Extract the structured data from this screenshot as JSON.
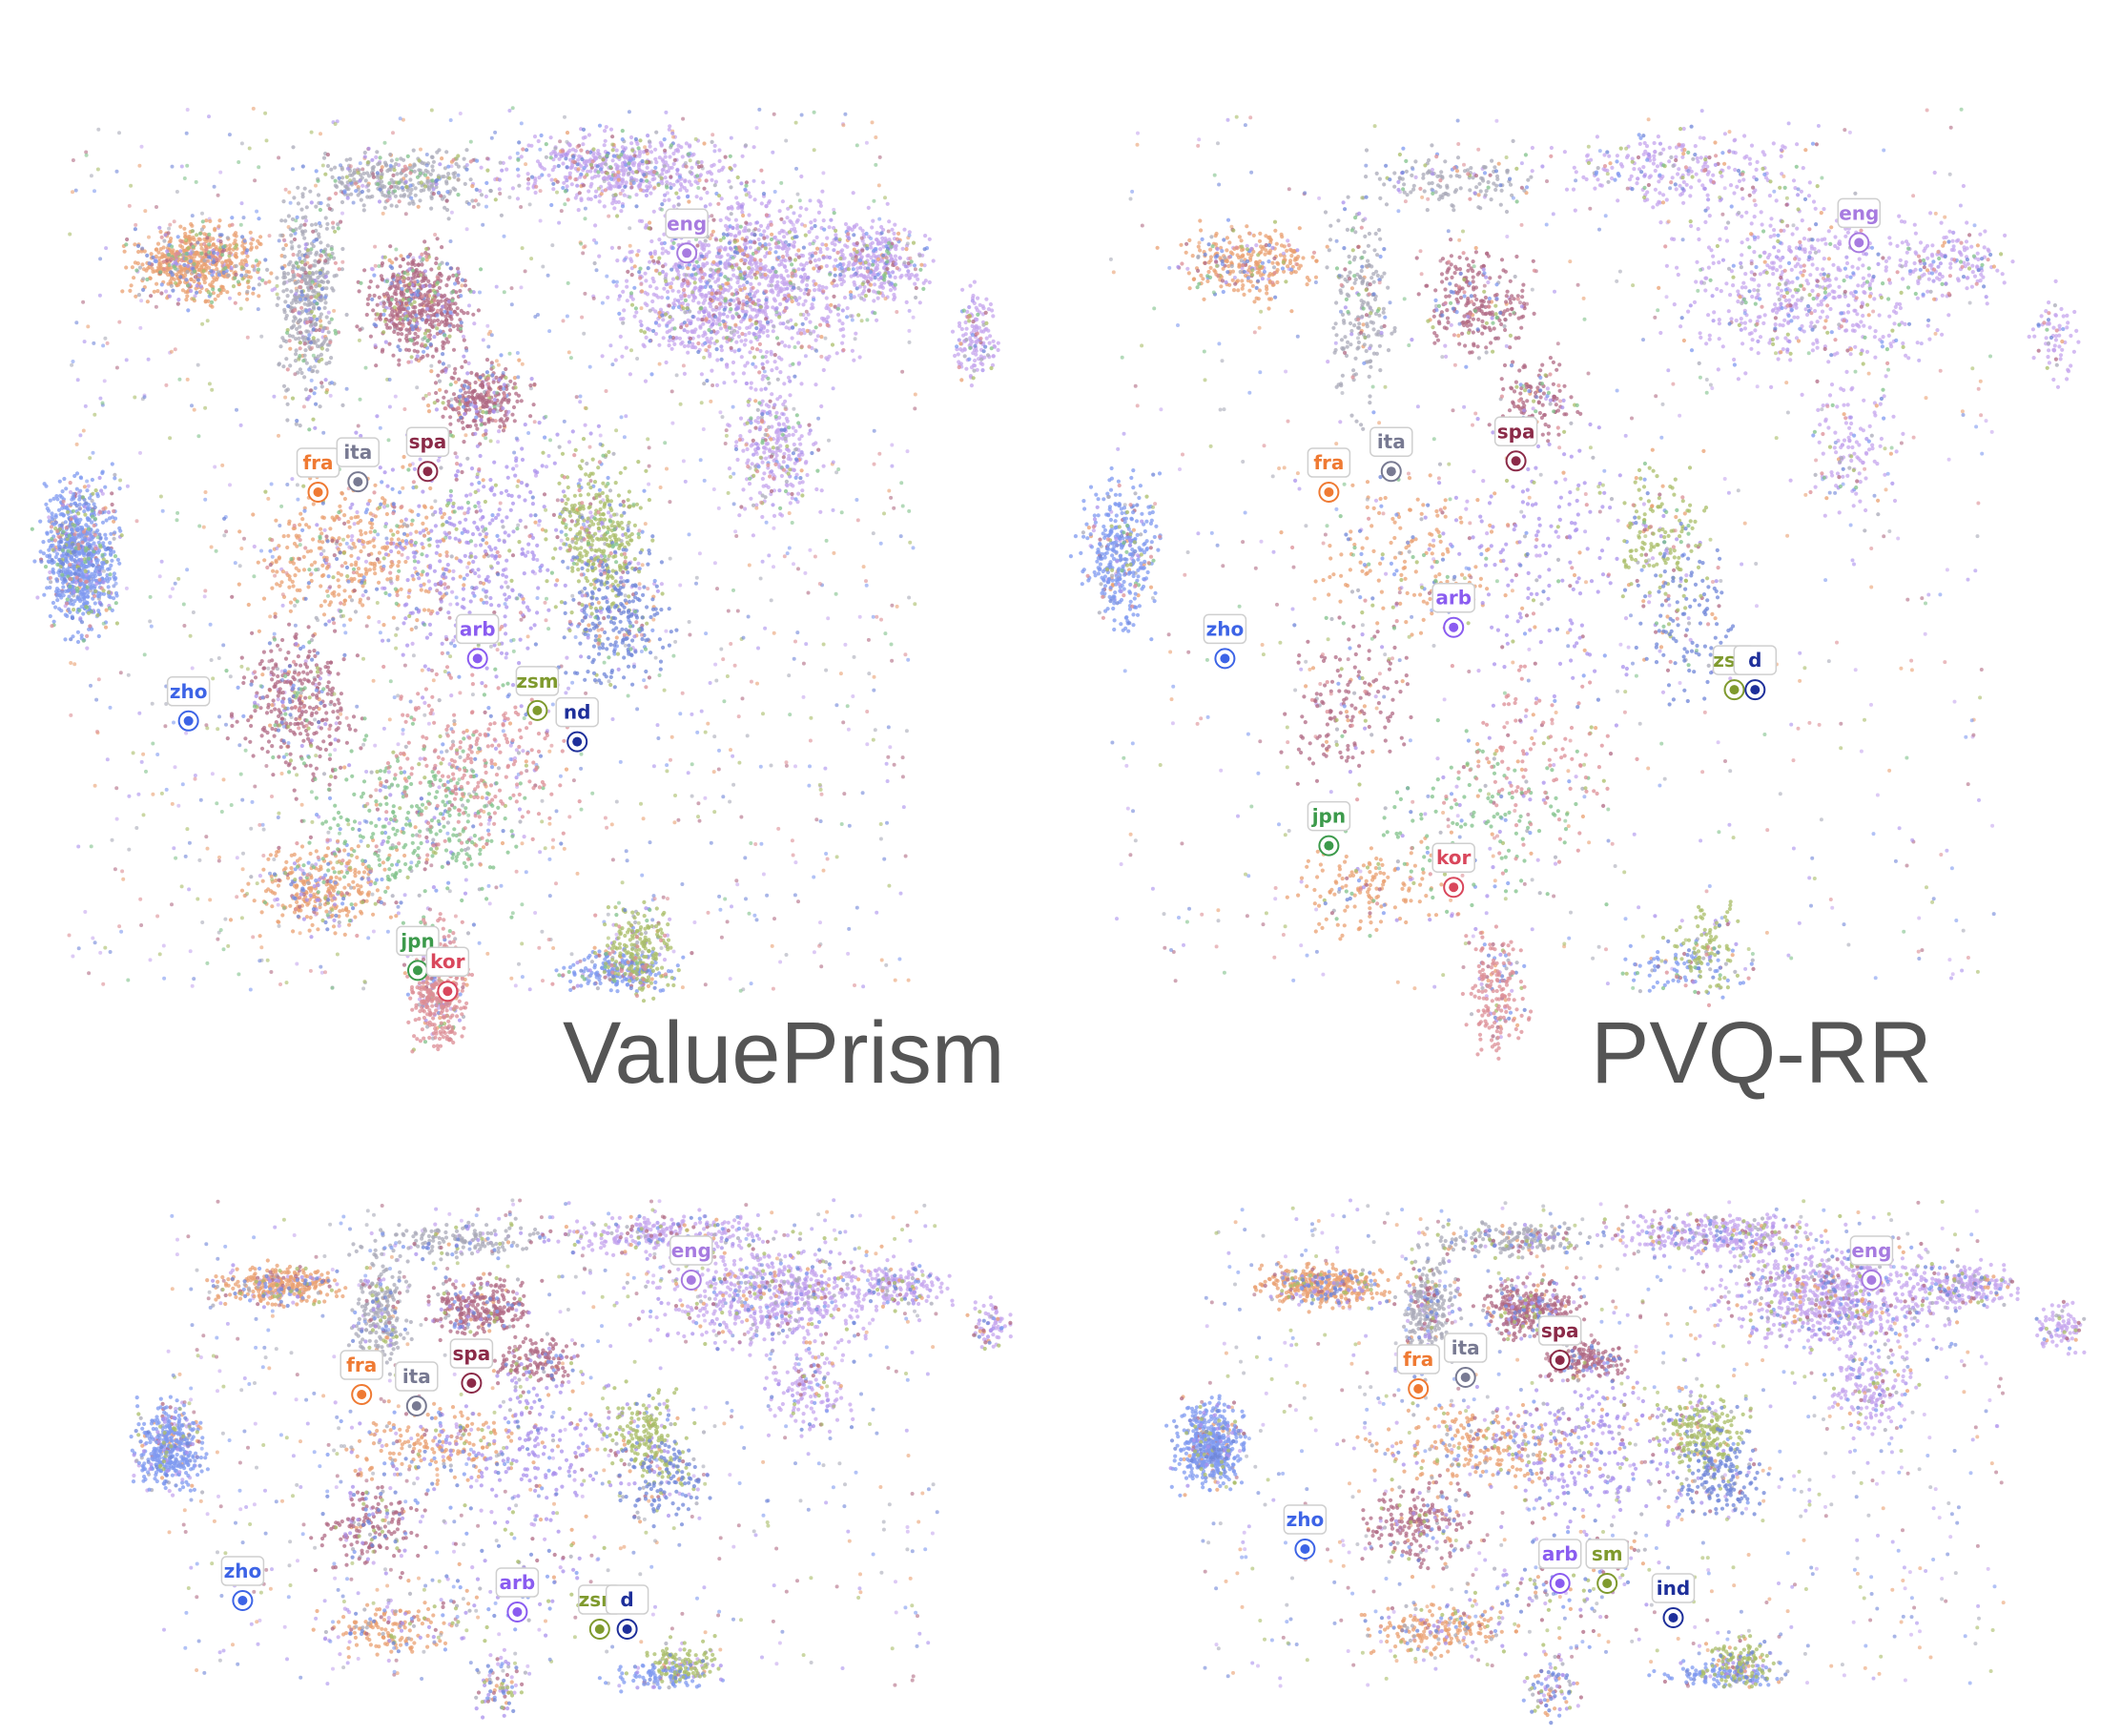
{
  "colors": {
    "eng": "#a77be0",
    "fra": "#ef7a33",
    "ita": "#787a92",
    "spa": "#8b2a48",
    "zho": "#3d64e6",
    "arb": "#8a5cf0",
    "zsm": "#7f9a2e",
    "ind": "#1e2f9a",
    "jpn": "#3c9a4b",
    "kor": "#d9475c"
  },
  "cloud_colors": {
    "eng": "#c6a6ee",
    "fra": "#e9a071",
    "ita": "#a9aab8",
    "spa": "#b06a84",
    "zho": "#7f9af0",
    "arb": "#aa90ec",
    "zsm": "#a9bd68",
    "ind": "#6f86d8",
    "jpn": "#80c18a",
    "kor": "#dc8e95"
  },
  "chart_data": [
    {
      "type": "scatter",
      "title": "ValuePrism",
      "point_density": 1.0,
      "series": [
        {
          "name": "eng"
        },
        {
          "name": "fra"
        },
        {
          "name": "ita"
        },
        {
          "name": "spa"
        },
        {
          "name": "zho"
        },
        {
          "name": "arb"
        },
        {
          "name": "zsm"
        },
        {
          "name": "ind"
        },
        {
          "name": "jpn"
        },
        {
          "name": "kor"
        }
      ]
    },
    {
      "type": "scatter",
      "title": "PVQ-RR",
      "point_density": 0.45,
      "series": [
        {
          "name": "eng"
        },
        {
          "name": "fra"
        },
        {
          "name": "ita"
        },
        {
          "name": "spa"
        },
        {
          "name": "zho"
        },
        {
          "name": "arb"
        },
        {
          "name": "zsm"
        },
        {
          "name": "ind"
        },
        {
          "name": "jpn"
        },
        {
          "name": "kor"
        }
      ]
    },
    {
      "type": "scatter",
      "title": "",
      "point_density": 0.5,
      "series": [
        {
          "name": "eng"
        },
        {
          "name": "fra"
        },
        {
          "name": "ita"
        },
        {
          "name": "spa"
        },
        {
          "name": "zho"
        },
        {
          "name": "arb"
        },
        {
          "name": "zsm"
        },
        {
          "name": "ind"
        }
      ]
    },
    {
      "type": "scatter",
      "title": "",
      "point_density": 0.6,
      "series": [
        {
          "name": "eng"
        },
        {
          "name": "fra"
        },
        {
          "name": "ita"
        },
        {
          "name": "spa"
        },
        {
          "name": "zho"
        },
        {
          "name": "arb"
        },
        {
          "name": "zsm"
        },
        {
          "name": "ind"
        }
      ]
    }
  ],
  "panel_labels": [
    [
      {
        "lang": "eng",
        "text": "eng"
      },
      {
        "lang": "fra",
        "text": "fra"
      },
      {
        "lang": "ita",
        "text": "ita"
      },
      {
        "lang": "spa",
        "text": "spa"
      },
      {
        "lang": "zho",
        "text": "zho"
      },
      {
        "lang": "arb",
        "text": "arb"
      },
      {
        "lang": "zsm",
        "text": "zsm"
      },
      {
        "lang": "ind",
        "text": "nd"
      },
      {
        "lang": "jpn",
        "text": "jpn"
      },
      {
        "lang": "kor",
        "text": "kor"
      }
    ],
    [
      {
        "lang": "eng",
        "text": "eng"
      },
      {
        "lang": "fra",
        "text": "fra"
      },
      {
        "lang": "ita",
        "text": "ita"
      },
      {
        "lang": "spa",
        "text": "spa"
      },
      {
        "lang": "zho",
        "text": "zho"
      },
      {
        "lang": "arb",
        "text": "arb"
      },
      {
        "lang": "zsm",
        "text": "zsm"
      },
      {
        "lang": "ind",
        "text": "d"
      },
      {
        "lang": "jpn",
        "text": "jpn"
      },
      {
        "lang": "kor",
        "text": "kor"
      }
    ],
    [
      {
        "lang": "eng",
        "text": "eng"
      },
      {
        "lang": "fra",
        "text": "fra"
      },
      {
        "lang": "ita",
        "text": "ita"
      },
      {
        "lang": "spa",
        "text": "spa"
      },
      {
        "lang": "zho",
        "text": "zho"
      },
      {
        "lang": "arb",
        "text": "arb"
      },
      {
        "lang": "zsm",
        "text": "zsm"
      },
      {
        "lang": "ind",
        "text": "d"
      }
    ],
    [
      {
        "lang": "eng",
        "text": "eng"
      },
      {
        "lang": "fra",
        "text": "fra"
      },
      {
        "lang": "ita",
        "text": "ita"
      },
      {
        "lang": "spa",
        "text": "spa"
      },
      {
        "lang": "zho",
        "text": "zho"
      },
      {
        "lang": "arb",
        "text": "arb"
      },
      {
        "lang": "zsm",
        "text": "sm"
      },
      {
        "lang": "ind",
        "text": "ind"
      }
    ]
  ]
}
